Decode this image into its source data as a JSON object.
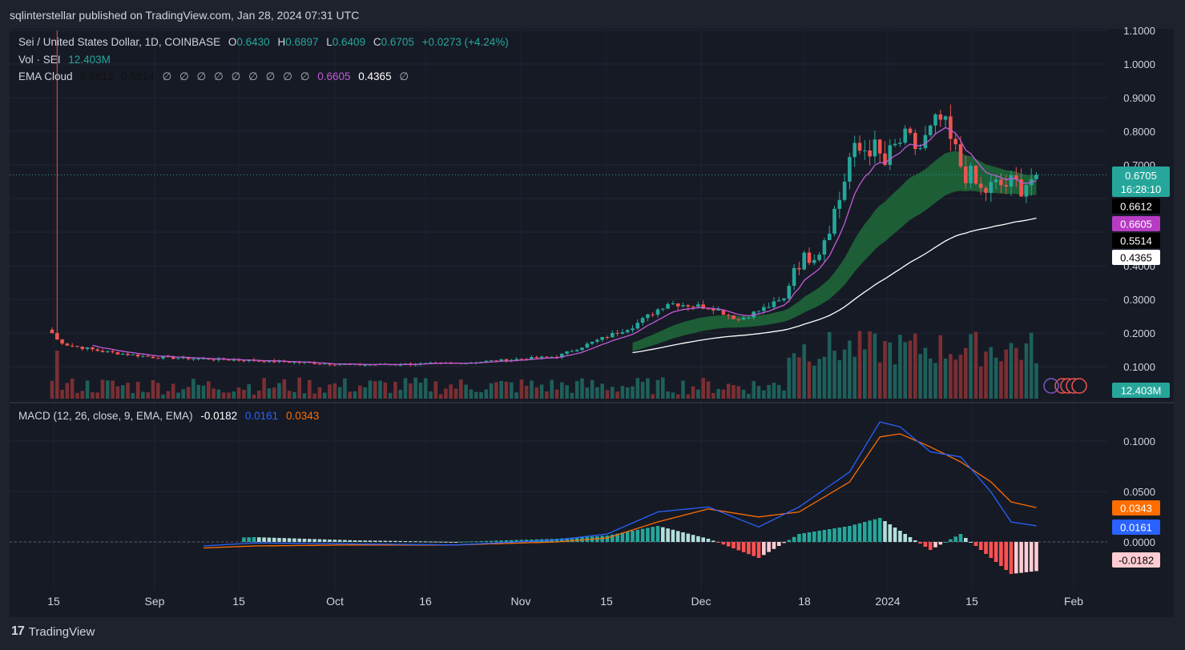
{
  "header": {
    "publisher": "sqlinterstellar published on TradingView.com, Jan 28, 2024 07:31 UTC"
  },
  "legend": {
    "symbol": "Sei / United States Dollar, 1D, COINBASE",
    "o_label": "O",
    "o_val": "0.6430",
    "h_label": "H",
    "h_val": "0.6897",
    "l_label": "L",
    "l_val": "0.6409",
    "c_label": "C",
    "c_val": "0.6705",
    "change": "+0.0273 (+4.24%)",
    "vol_label": "Vol · SEI",
    "vol_val": "12.403M",
    "ema_label": "EMA Cloud",
    "ema_v1": "0.6612",
    "ema_v2": "0.5514",
    "empty_symbol": "∅",
    "ema_v3": "0.6605",
    "ema_v4": "0.4365",
    "macd_label": "MACD (12, 26, close, 9, EMA, EMA)",
    "macd_hist": "-0.0182",
    "macd_line": "0.0161",
    "macd_signal": "0.0343"
  },
  "price_axis": {
    "ticks": [
      "1.1000",
      "1.0000",
      "0.9000",
      "0.8000",
      "0.7000",
      "0.4000",
      "0.3000",
      "0.2000",
      "0.1000"
    ],
    "current_price": "0.6705",
    "countdown": "16:28:10",
    "tags": [
      "0.6612",
      "0.6605",
      "0.5514",
      "0.4365"
    ],
    "volume_tag": "12.403M"
  },
  "macd_axis": {
    "ticks": [
      "0.1000",
      "0.0500",
      "0.0000"
    ],
    "tags": [
      "0.0343",
      "0.0161",
      "-0.0182"
    ]
  },
  "time_axis": [
    "15",
    "Sep",
    "15",
    "Oct",
    "16",
    "Nov",
    "15",
    "Dec",
    "18",
    "2024",
    "15",
    "Feb"
  ],
  "footer": {
    "brand": "TradingView",
    "logo_text": "17"
  },
  "colors": {
    "up": "#26a69a",
    "down": "#ef5350",
    "ema_fast": "#c15bd6",
    "ema_slow": "#ffffff",
    "macd": "#2962ff",
    "signal": "#ff6d00",
    "cloud": "#1f6b3a"
  },
  "chart_data": {
    "type": "candlestick",
    "title": "Sei / United States Dollar, 1D, COINBASE",
    "ylim": [
      0,
      1.1
    ],
    "price_anchors": {
      "days": [
        0,
        1,
        3,
        10,
        20,
        40,
        60,
        80,
        100,
        115,
        122,
        131,
        136,
        145,
        147,
        152,
        156,
        158,
        162,
        165,
        168,
        172,
        176,
        180,
        184,
        188,
        192,
        195
      ],
      "close": [
        0.2,
        0.18,
        0.165,
        0.145,
        0.128,
        0.118,
        0.105,
        0.11,
        0.13,
        0.22,
        0.29,
        0.275,
        0.24,
        0.3,
        0.4,
        0.45,
        0.6,
        0.72,
        0.76,
        0.7,
        0.77,
        0.75,
        0.83,
        0.7,
        0.62,
        0.64,
        0.64,
        0.6705
      ]
    },
    "ema_fast_end": 0.6605,
    "ema_slow_end": 0.4365,
    "ema_cloud_upper_end": 0.6612,
    "ema_cloud_lower_end": 0.5514,
    "volume_last": "12.403M",
    "macd": {
      "days": [
        30,
        40,
        60,
        80,
        100,
        110,
        120,
        130,
        140,
        148,
        158,
        164,
        168,
        174,
        180,
        186,
        190,
        195
      ],
      "macd": [
        -0.004,
        -0.001,
        -0.002,
        -0.003,
        0.002,
        0.008,
        0.03,
        0.035,
        0.015,
        0.035,
        0.07,
        0.12,
        0.115,
        0.09,
        0.085,
        0.05,
        0.02,
        0.0161
      ],
      "signal": [
        -0.006,
        -0.004,
        -0.003,
        -0.003,
        0.0,
        0.004,
        0.02,
        0.033,
        0.025,
        0.03,
        0.06,
        0.105,
        0.108,
        0.095,
        0.08,
        0.06,
        0.04,
        0.0343
      ]
    }
  }
}
